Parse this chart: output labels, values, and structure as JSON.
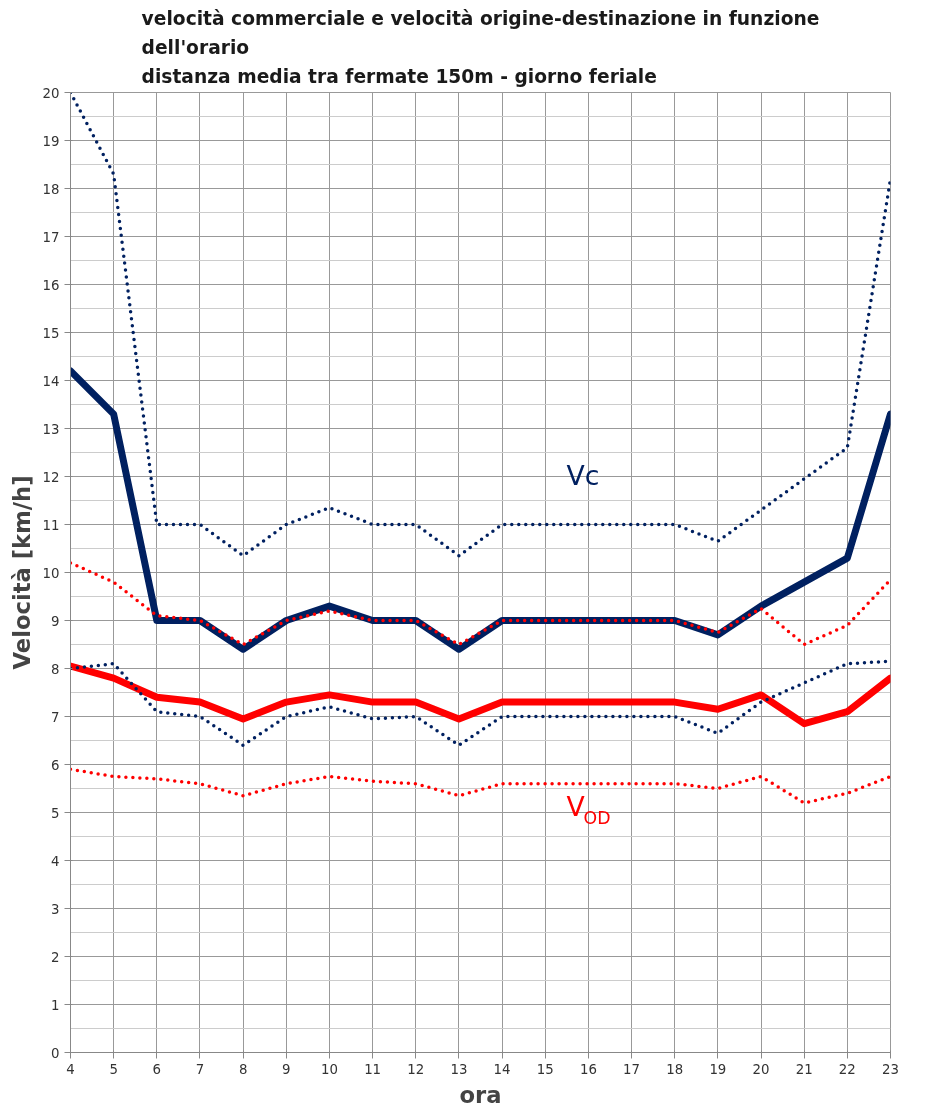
{
  "chart_data": {
    "type": "line",
    "title": "velocità commerciale e velocità origine-destinazione in funzione\ndell'orario\ndistanza media tra fermate 150m - giorno feriale",
    "xlabel": "ora",
    "ylabel": "Velocità [km/h]",
    "x": [
      4,
      5,
      6,
      7,
      8,
      9,
      10,
      11,
      12,
      13,
      14,
      15,
      16,
      17,
      18,
      19,
      20,
      21,
      22,
      23
    ],
    "series": [
      {
        "color": "#002060",
        "line_style": "dotted",
        "values": [
          20.0,
          18.3,
          11.0,
          11.0,
          10.35,
          11.0,
          11.35,
          11.0,
          11.0,
          10.35,
          11.0,
          11.0,
          11.0,
          11.0,
          11.0,
          10.65,
          11.3,
          11.95,
          12.6,
          18.2
        ]
      },
      {
        "color": "#ff0000",
        "line_style": "dotted",
        "values": [
          10.2,
          9.8,
          9.1,
          9.0,
          8.5,
          9.0,
          9.2,
          9.0,
          9.0,
          8.5,
          9.0,
          9.0,
          9.0,
          9.0,
          9.0,
          8.75,
          9.25,
          8.5,
          8.9,
          9.85
        ]
      },
      {
        "color": "#002060",
        "line_style": "solid",
        "values": [
          14.2,
          13.3,
          9.0,
          9.0,
          8.4,
          9.0,
          9.3,
          9.0,
          9.0,
          8.4,
          9.0,
          9.0,
          9.0,
          9.0,
          9.0,
          8.7,
          9.3,
          9.8,
          10.3,
          13.3
        ]
      },
      {
        "color": "#002060",
        "line_style": "dotted",
        "values": [
          8.0,
          8.1,
          7.1,
          7.0,
          6.4,
          7.0,
          7.2,
          6.95,
          7.0,
          6.4,
          7.0,
          7.0,
          7.0,
          7.0,
          7.0,
          6.65,
          7.3,
          7.7,
          8.1,
          8.15
        ]
      },
      {
        "color": "#ff0000",
        "line_style": "solid",
        "values": [
          8.05,
          7.8,
          7.4,
          7.3,
          6.95,
          7.3,
          7.45,
          7.3,
          7.3,
          6.95,
          7.3,
          7.3,
          7.3,
          7.3,
          7.3,
          7.15,
          7.45,
          6.85,
          7.1,
          7.8
        ]
      },
      {
        "color": "#ff0000",
        "line_style": "dotted",
        "values": [
          5.9,
          5.75,
          5.7,
          5.6,
          5.35,
          5.6,
          5.75,
          5.65,
          5.6,
          5.35,
          5.6,
          5.6,
          5.6,
          5.6,
          5.6,
          5.5,
          5.75,
          5.2,
          5.4,
          5.75
        ]
      }
    ],
    "annotations": [
      "Vc",
      "V$_{OD}$"
    ],
    "xlim": [
      4,
      23
    ],
    "ylim": [
      0,
      20
    ],
    "xticks": [
      4,
      5,
      6,
      7,
      8,
      9,
      10,
      11,
      12,
      13,
      14,
      15,
      16,
      17,
      18,
      19,
      20,
      21,
      22,
      23
    ],
    "yticks": [
      0,
      1,
      2,
      3,
      4,
      5,
      6,
      7,
      8,
      9,
      10,
      11,
      12,
      13,
      14,
      15,
      16,
      17,
      18,
      19,
      20
    ],
    "grid": true
  }
}
